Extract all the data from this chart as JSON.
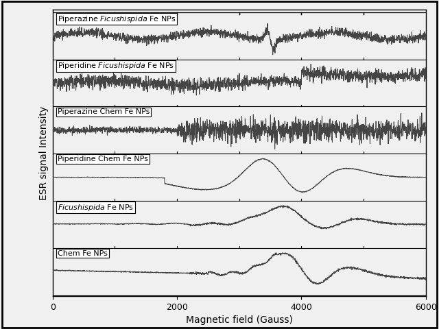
{
  "xlabel": "Magnetic field (Gauss)",
  "ylabel": "ESR signal Intensity",
  "xlim": [
    0,
    6000
  ],
  "x_ticks": [
    0,
    2000,
    4000,
    6000
  ],
  "background_color": "#f0f0f0",
  "border_color": "#000000",
  "line_color": "#555555",
  "label_fontsize": 10,
  "tick_fontsize": 9,
  "panels": [
    {
      "label": "Piperazine \\it{Ficus hispida} Fe NPs",
      "signal_type": "sharp_narrow"
    },
    {
      "label": "Piperidine \\it{Ficus hispida} Fe NPs",
      "signal_type": "double_peak_medium"
    },
    {
      "label": "Piperazine Chem Fe NPs",
      "signal_type": "single_dip"
    },
    {
      "label": "Piperidine Chem Fe NPs",
      "signal_type": "broad_double"
    },
    {
      "label": "\\it{Ficus hispida} Fe NPs",
      "signal_type": "broad_peak"
    },
    {
      "label": "Chem Fe NPs",
      "signal_type": "sharp_asymmetric"
    }
  ]
}
